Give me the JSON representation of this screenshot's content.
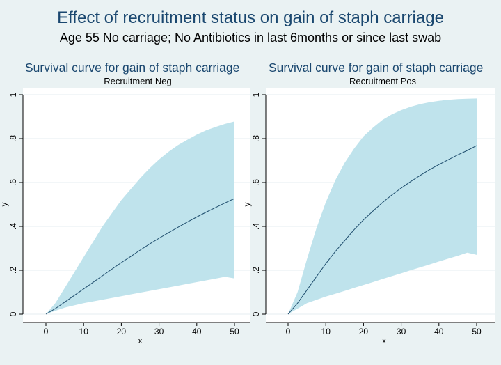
{
  "title": "Effect of recruitment status on gain of staph carriage",
  "subtitle": "Age 55 No carriage; No Antibiotics in last 6months or since last swab",
  "colors": {
    "background": "#eaf2f3",
    "plot_bg": "#ffffff",
    "band": "#bfe3ec",
    "line": "#1f4e6e",
    "title": "#1a476f"
  },
  "chart_data": [
    {
      "type": "area",
      "title": "Survival curve for gain of staph carriage",
      "subtitle": "Recruitment Neg",
      "xlabel": "x",
      "ylabel": "y",
      "xlim": [
        0,
        50
      ],
      "ylim": [
        0,
        1
      ],
      "xticks": [
        0,
        10,
        20,
        30,
        40,
        50
      ],
      "yticks": [
        0,
        0.2,
        0.4,
        0.6,
        0.8,
        1
      ],
      "ytick_labels": [
        "0",
        ".2",
        ".4",
        ".6",
        ".8",
        "1"
      ],
      "grid": true,
      "x": [
        0,
        2.5,
        5,
        7.5,
        10,
        12.5,
        15,
        17.5,
        20,
        22.5,
        25,
        27.5,
        30,
        32.5,
        35,
        37.5,
        40,
        42.5,
        45,
        47.5,
        50
      ],
      "series": [
        {
          "role": "estimate",
          "values": [
            0,
            0.025,
            0.055,
            0.085,
            0.115,
            0.145,
            0.175,
            0.205,
            0.235,
            0.263,
            0.292,
            0.32,
            0.346,
            0.371,
            0.396,
            0.42,
            0.443,
            0.465,
            0.486,
            0.507,
            0.527
          ]
        },
        {
          "role": "upper",
          "values": [
            0,
            0.05,
            0.12,
            0.19,
            0.26,
            0.33,
            0.4,
            0.46,
            0.52,
            0.57,
            0.62,
            0.665,
            0.705,
            0.74,
            0.77,
            0.795,
            0.818,
            0.838,
            0.853,
            0.867,
            0.878
          ]
        },
        {
          "role": "lower",
          "values": [
            0,
            0.015,
            0.03,
            0.04,
            0.05,
            0.058,
            0.066,
            0.074,
            0.082,
            0.09,
            0.098,
            0.106,
            0.114,
            0.122,
            0.13,
            0.138,
            0.146,
            0.154,
            0.162,
            0.17,
            0.163
          ]
        }
      ]
    },
    {
      "type": "area",
      "title": "Survival curve for gain of staph carriage",
      "subtitle": "Recruitment Pos",
      "xlabel": "x",
      "ylabel": "y",
      "xlim": [
        0,
        50
      ],
      "ylim": [
        0,
        1
      ],
      "xticks": [
        0,
        10,
        20,
        30,
        40,
        50
      ],
      "yticks": [
        0,
        0.2,
        0.4,
        0.6,
        0.8,
        1
      ],
      "ytick_labels": [
        "0",
        ".2",
        ".4",
        ".6",
        ".8",
        "1"
      ],
      "grid": true,
      "x": [
        0,
        2.5,
        5,
        7.5,
        10,
        12.5,
        15,
        17.5,
        20,
        22.5,
        25,
        27.5,
        30,
        32.5,
        35,
        37.5,
        40,
        42.5,
        45,
        47.5,
        50
      ],
      "series": [
        {
          "role": "estimate",
          "values": [
            0,
            0.05,
            0.11,
            0.17,
            0.23,
            0.285,
            0.335,
            0.385,
            0.43,
            0.47,
            0.508,
            0.543,
            0.575,
            0.604,
            0.632,
            0.658,
            0.682,
            0.704,
            0.726,
            0.746,
            0.768
          ]
        },
        {
          "role": "upper",
          "values": [
            0,
            0.1,
            0.25,
            0.39,
            0.51,
            0.61,
            0.69,
            0.755,
            0.81,
            0.85,
            0.885,
            0.91,
            0.93,
            0.945,
            0.957,
            0.966,
            0.972,
            0.977,
            0.98,
            0.982,
            0.983
          ]
        },
        {
          "role": "lower",
          "values": [
            0,
            0.025,
            0.05,
            0.065,
            0.08,
            0.093,
            0.106,
            0.12,
            0.133,
            0.146,
            0.16,
            0.173,
            0.186,
            0.2,
            0.213,
            0.226,
            0.24,
            0.253,
            0.266,
            0.28,
            0.27
          ]
        }
      ]
    }
  ]
}
